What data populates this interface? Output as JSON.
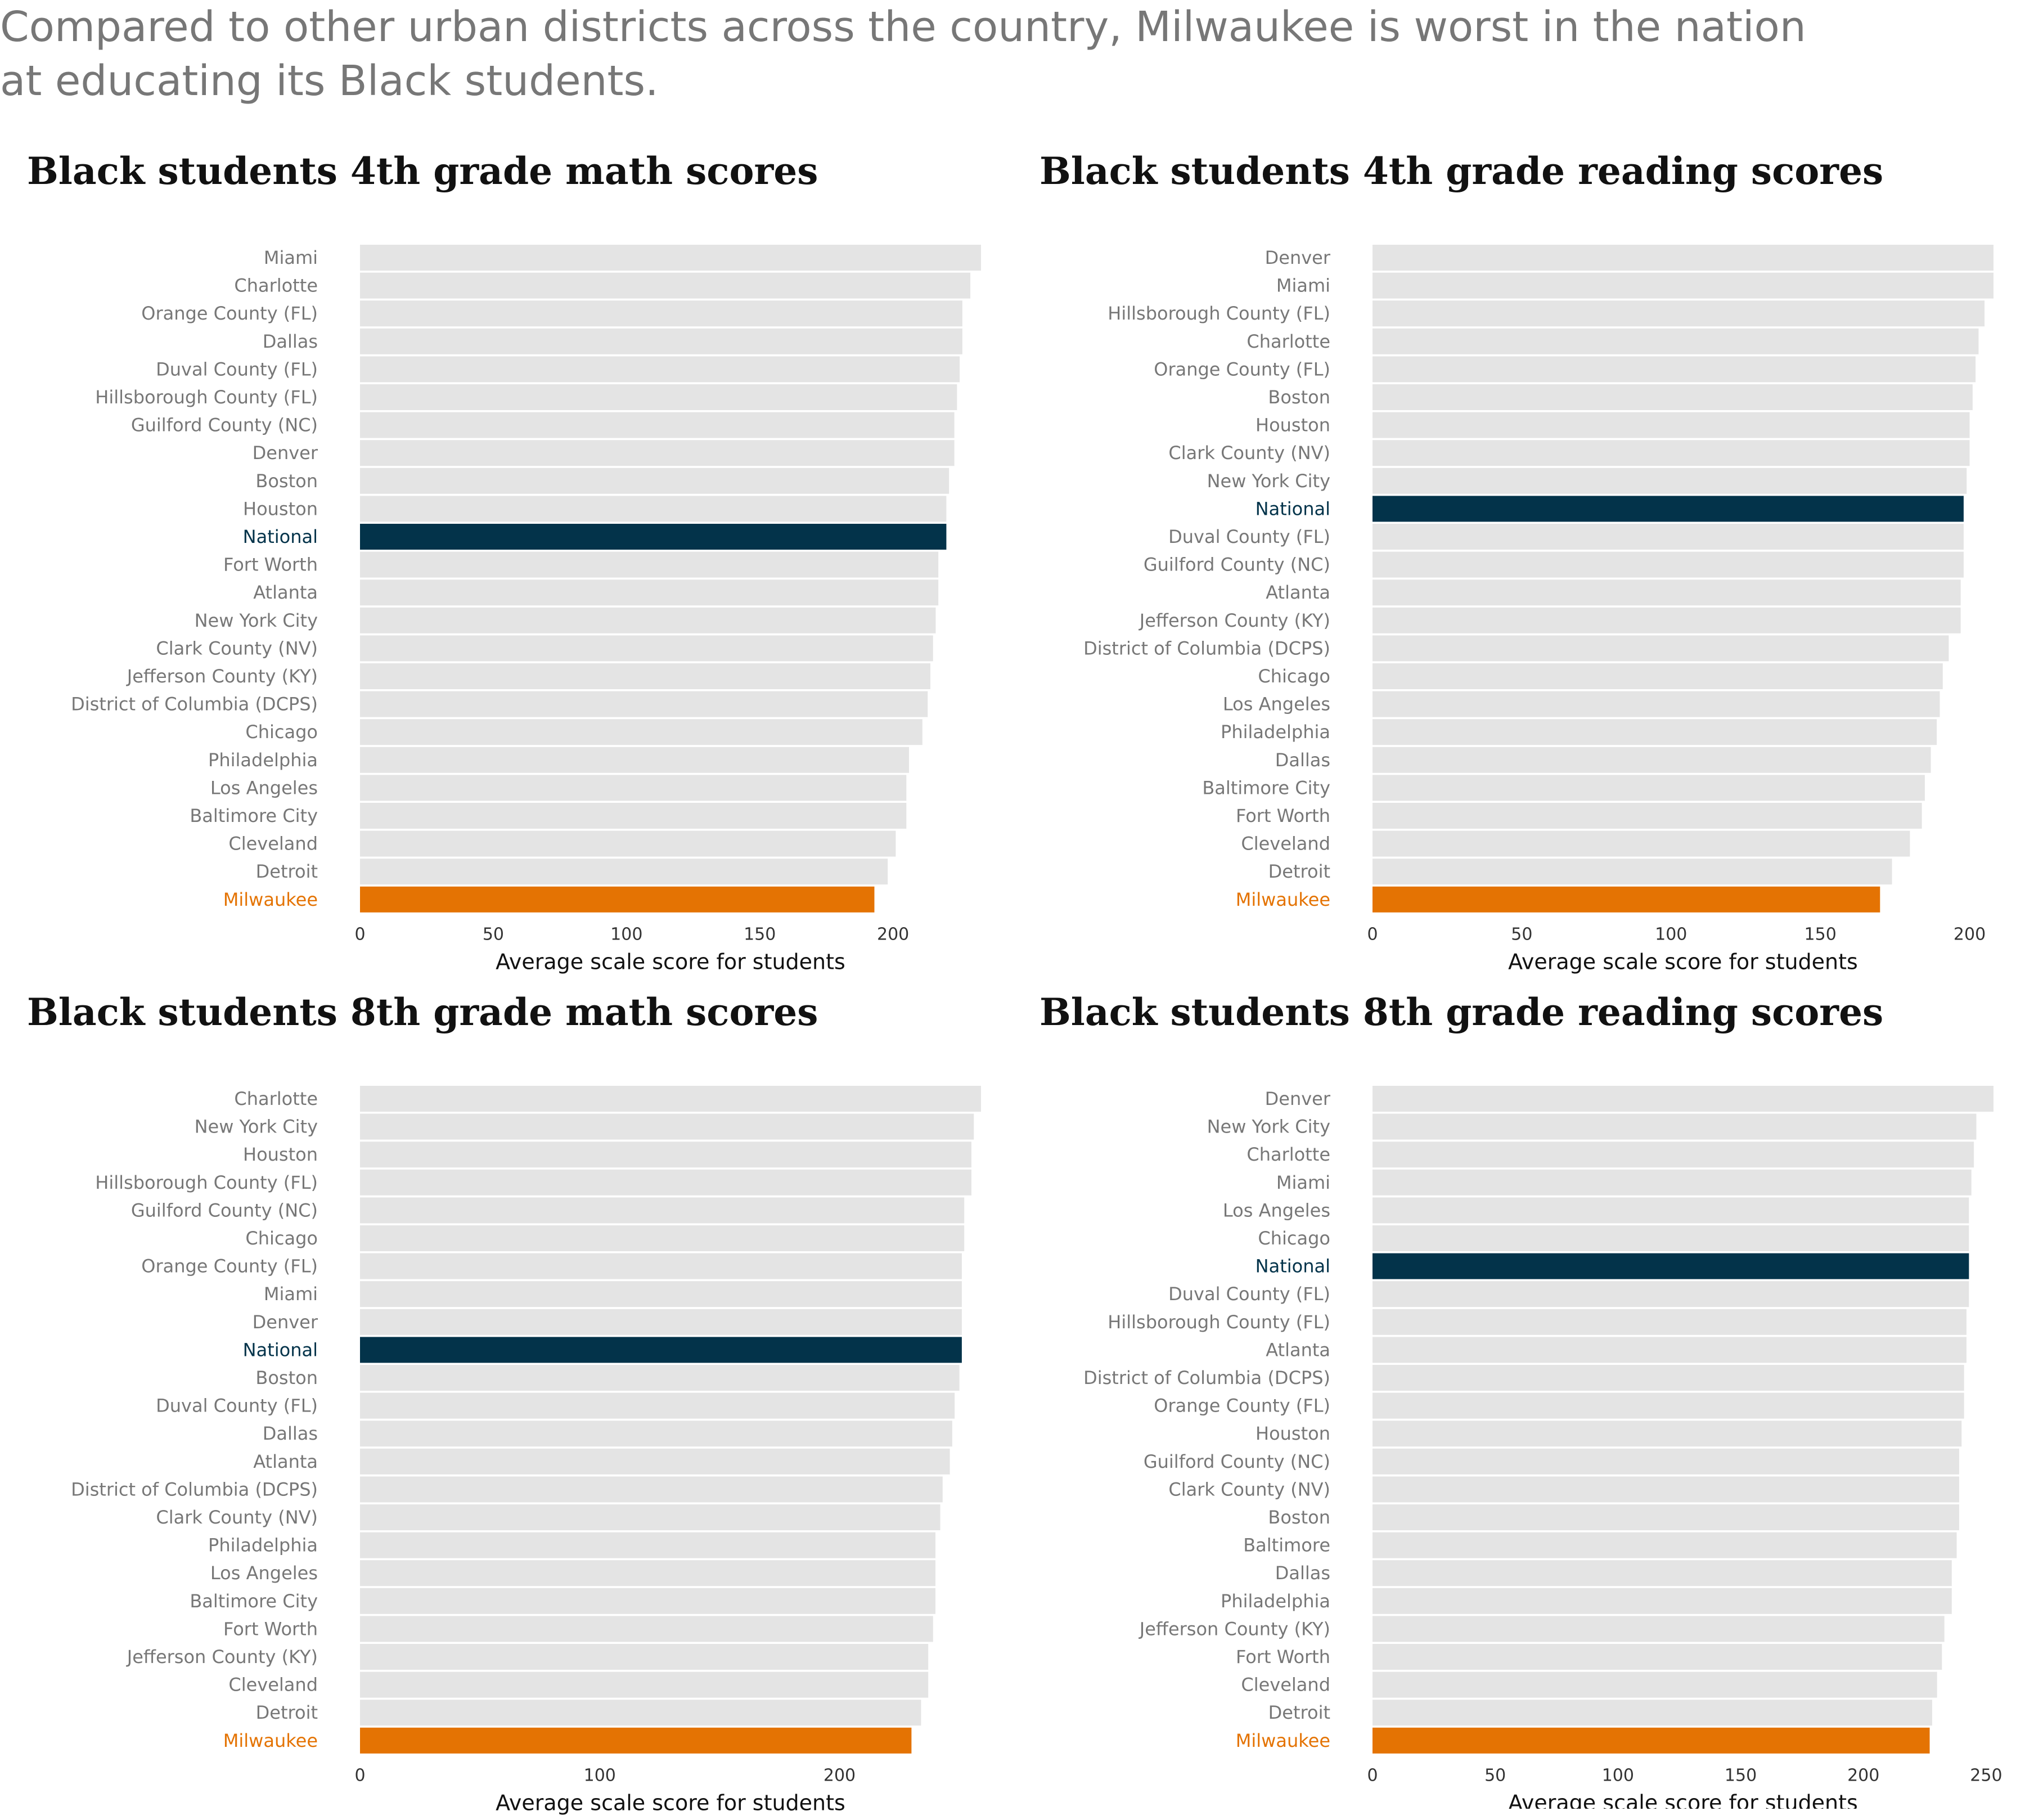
{
  "headline": "Compared to other urban districts across the country, Milwaukee is worst in the nation at educating its Black students.",
  "colors": {
    "default": "#e4e4e4",
    "national": "#03334a",
    "highlight": "#e47303",
    "label": "#777777",
    "axis": "#333333"
  },
  "chart_data": [
    {
      "type": "bar",
      "orientation": "horizontal",
      "title": "Black students 4th grade math scores",
      "xlabel": "Average scale score for students",
      "xlim": [
        0,
        233
      ],
      "xticks": [
        0,
        50,
        100,
        150,
        200
      ],
      "categories": [
        "Miami",
        "Charlotte",
        "Orange County (FL)",
        "Dallas",
        "Duval County (FL)",
        "Hillsborough County (FL)",
        "Guilford County (NC)",
        "Denver",
        "Boston",
        "Houston",
        "National",
        "Fort Worth",
        "Atlanta",
        "New York City",
        "Clark County (NV)",
        "Jefferson County (KY)",
        "District of Columbia (DCPS)",
        "Chicago",
        "Philadelphia",
        "Los Angeles",
        "Baltimore City",
        "Cleveland",
        "Detroit",
        "Milwaukee"
      ],
      "values": [
        233,
        229,
        226,
        226,
        225,
        224,
        223,
        223,
        221,
        220,
        220,
        217,
        217,
        216,
        215,
        214,
        213,
        211,
        206,
        205,
        205,
        201,
        198,
        193
      ],
      "national": "National",
      "highlight": "Milwaukee"
    },
    {
      "type": "bar",
      "orientation": "horizontal",
      "title": "Black students 4th grade reading scores",
      "xlabel": "Average scale score for students",
      "xlim": [
        0,
        208
      ],
      "xticks": [
        0,
        50,
        100,
        150,
        200
      ],
      "categories": [
        "Denver",
        "Miami",
        "Hillsborough County (FL)",
        "Charlotte",
        "Orange County (FL)",
        "Boston",
        "Houston",
        "Clark County (NV)",
        "New York City",
        "National",
        "Duval County (FL)",
        "Guilford County (NC)",
        "Atlanta",
        "Jefferson County (KY)",
        "District of Columbia (DCPS)",
        "Chicago",
        "Los Angeles",
        "Philadelphia",
        "Dallas",
        "Baltimore City",
        "Fort Worth",
        "Cleveland",
        "Detroit",
        "Milwaukee"
      ],
      "values": [
        208,
        208,
        205,
        203,
        202,
        201,
        200,
        200,
        199,
        198,
        198,
        198,
        197,
        197,
        193,
        191,
        190,
        189,
        187,
        185,
        184,
        180,
        174,
        170
      ],
      "national": "National",
      "highlight": "Milwaukee"
    },
    {
      "type": "bar",
      "orientation": "horizontal",
      "title": "Black students 8th grade math scores",
      "xlabel": "Average scale score for students",
      "xlim": [
        0,
        259
      ],
      "xticks": [
        0,
        100,
        200
      ],
      "categories": [
        "Charlotte",
        "New York City",
        "Houston",
        "Hillsborough County (FL)",
        "Guilford County (NC)",
        "Chicago",
        "Orange County (FL)",
        "Miami",
        "Denver",
        "National",
        "Boston",
        "Duval County (FL)",
        "Dallas",
        "Atlanta",
        "District of Columbia (DCPS)",
        "Clark County (NV)",
        "Philadelphia",
        "Los Angeles",
        "Baltimore City",
        "Fort Worth",
        "Jefferson County (KY)",
        "Cleveland",
        "Detroit",
        "Milwaukee"
      ],
      "values": [
        259,
        256,
        255,
        255,
        252,
        252,
        251,
        251,
        251,
        251,
        250,
        248,
        247,
        246,
        243,
        242,
        240,
        240,
        240,
        239,
        237,
        237,
        234,
        230
      ],
      "national": "National",
      "highlight": "Milwaukee"
    },
    {
      "type": "bar",
      "orientation": "horizontal",
      "title": "Black students 8th grade reading scores",
      "xlabel": "Average scale score for students",
      "xlim": [
        0,
        253
      ],
      "xticks": [
        0,
        50,
        100,
        150,
        200,
        250
      ],
      "categories": [
        "Denver",
        "New York City",
        "Charlotte",
        "Miami",
        "Los Angeles",
        "Chicago",
        "National",
        "Duval County (FL)",
        "Hillsborough County (FL)",
        "Atlanta",
        "District of Columbia (DCPS)",
        "Orange County (FL)",
        "Houston",
        "Guilford County (NC)",
        "Clark County (NV)",
        "Boston",
        "Baltimore",
        "Dallas",
        "Philadelphia",
        "Jefferson County (KY)",
        "Fort Worth",
        "Cleveland",
        "Detroit",
        "Milwaukee"
      ],
      "values": [
        253,
        246,
        245,
        244,
        243,
        243,
        243,
        243,
        242,
        242,
        241,
        241,
        240,
        239,
        239,
        239,
        238,
        236,
        236,
        233,
        232,
        230,
        228,
        227
      ],
      "national": "National",
      "highlight": "Milwaukee"
    }
  ]
}
